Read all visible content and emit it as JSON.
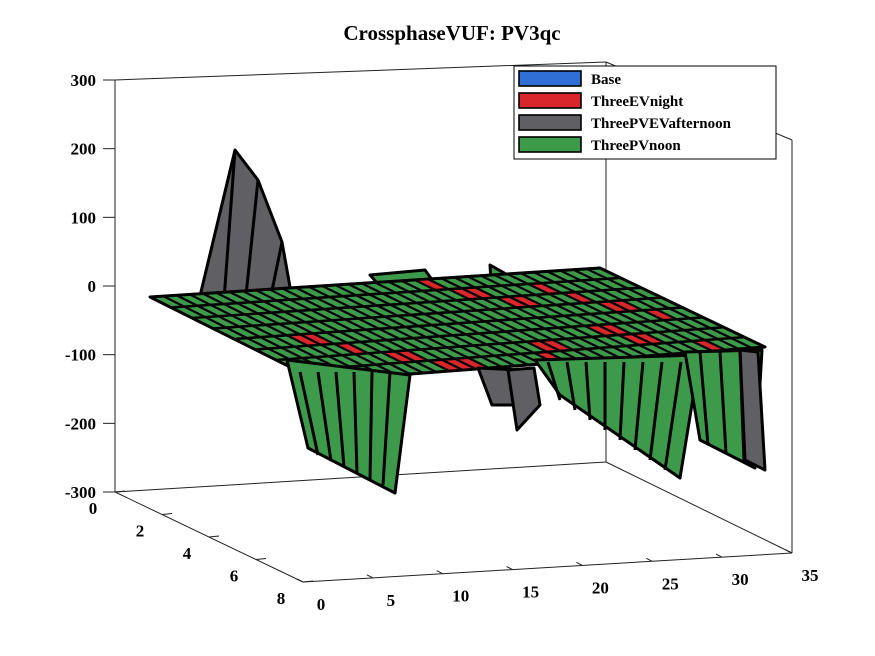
{
  "chart_data": {
    "type": "surface3d",
    "title": "CrossphaseVUF: PV3qc",
    "x_axis": {
      "label": "",
      "ticks": [
        0,
        5,
        10,
        15,
        20,
        25,
        30,
        35
      ],
      "range": [
        0,
        35
      ]
    },
    "y_axis": {
      "label": "",
      "ticks": [
        0,
        2,
        4,
        6,
        8
      ],
      "range": [
        0,
        8
      ]
    },
    "z_axis": {
      "label": "",
      "ticks": [
        -300,
        -200,
        -100,
        0,
        100,
        200,
        300
      ],
      "range": [
        -300,
        300
      ]
    },
    "grid": false,
    "legend": {
      "placement": "top-right",
      "entries": [
        {
          "name": "Base",
          "color": "#2f6fd6"
        },
        {
          "name": "ThreeEVnight",
          "color": "#d9262c"
        },
        {
          "name": "ThreePVEVafternoon",
          "color": "#5f5f64"
        },
        {
          "name": "ThreePVnoon",
          "color": "#3e9a4b"
        }
      ]
    },
    "series": [
      {
        "name": "ThreePVEVafternoon",
        "description_values": {
          "peak_x": 5,
          "peak_y": 0,
          "peak_z": 200
        }
      },
      {
        "name": "ThreePVnoon",
        "description_values": {
          "min_z": -300,
          "max_z": 30
        }
      },
      {
        "name": "ThreeEVnight",
        "description_values": {
          "z": 0
        }
      },
      {
        "name": "Base",
        "description_values": {
          "z": 0
        }
      }
    ]
  }
}
